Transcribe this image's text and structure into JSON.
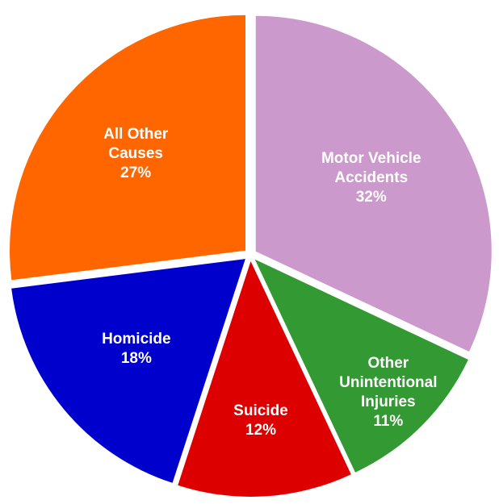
{
  "chart_data": {
    "type": "pie",
    "categories": [
      "Motor Vehicle Accidents",
      "Other Unintentional Injuries",
      "Suicide",
      "Homicide",
      "All Other Causes"
    ],
    "values": [
      32,
      11,
      12,
      18,
      27
    ],
    "value_labels": [
      "32%",
      "11%",
      "12%",
      "18%",
      "27%"
    ],
    "colors": [
      "#cc99cc",
      "#339933",
      "#dd0000",
      "#0000cc",
      "#ff6600"
    ]
  }
}
